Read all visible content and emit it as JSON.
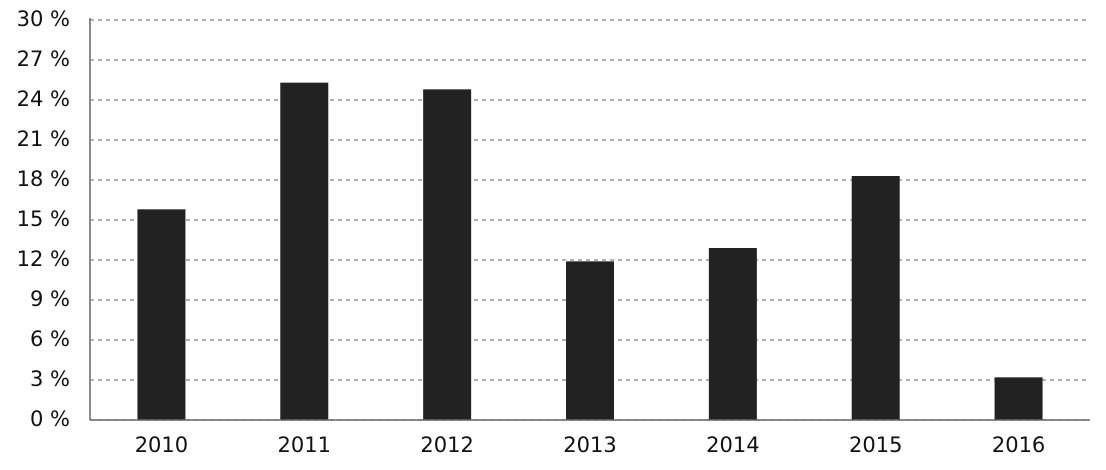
{
  "chart_data": {
    "type": "bar",
    "categories": [
      "2010",
      "2011",
      "2012",
      "2013",
      "2014",
      "2015",
      "2016"
    ],
    "values": [
      15.8,
      25.3,
      24.8,
      11.9,
      12.9,
      18.3,
      3.2
    ],
    "color": "#222222",
    "ylim": [
      0,
      30
    ],
    "yticks": [
      {
        "value": 0,
        "label": "0 %"
      },
      {
        "value": 3,
        "label": "3 %"
      },
      {
        "value": 6,
        "label": "6 %"
      },
      {
        "value": 9,
        "label": "9 %"
      },
      {
        "value": 12,
        "label": "12 %"
      },
      {
        "value": 15,
        "label": "15 %"
      },
      {
        "value": 18,
        "label": "18 %"
      },
      {
        "value": 21,
        "label": "21 %"
      },
      {
        "value": 24,
        "label": "24 %"
      },
      {
        "value": 27,
        "label": "27 %"
      },
      {
        "value": 30,
        "label": "30 %"
      }
    ],
    "grid": true
  }
}
